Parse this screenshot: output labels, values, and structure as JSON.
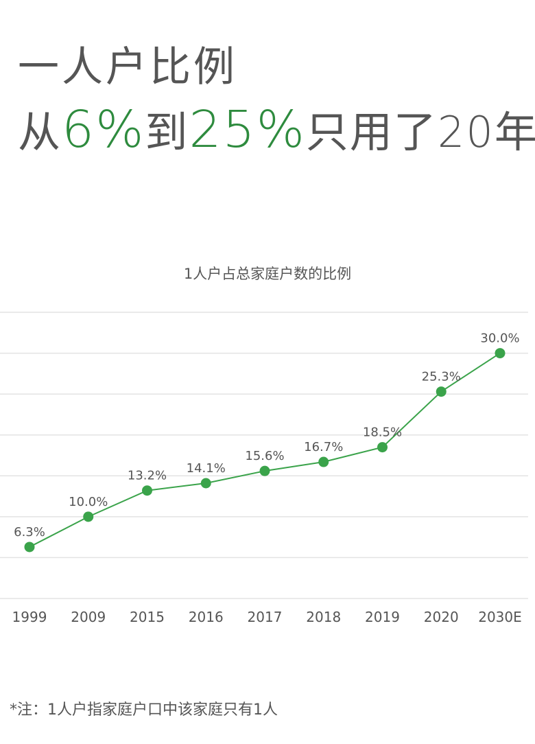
{
  "headline": {
    "line1": "一人户比例",
    "line2_prefix": "从",
    "line2_num1": "6%",
    "line2_mid": "到",
    "line2_num2": "25%",
    "line2_suffix": "只用了20年"
  },
  "footnote": "*注：1人户指家庭户口中该家庭只有1人",
  "colors": {
    "accent": "#2e8b3e",
    "line": "#3aa34a",
    "gridline": "#e3e3e3",
    "text": "#555555"
  },
  "chart_data": {
    "type": "line",
    "title": "1人户占总家庭户数的比例",
    "xlabel": "",
    "ylabel": "",
    "categories": [
      "1999",
      "2009",
      "2015",
      "2016",
      "2017",
      "2018",
      "2019",
      "2020",
      "2030E"
    ],
    "series": [
      {
        "values": [
          6.3,
          10.0,
          13.2,
          14.1,
          15.6,
          16.7,
          18.5,
          25.3,
          30.0
        ],
        "labels": [
          "6.3%",
          "10.0%",
          "13.2%",
          "14.1%",
          "15.6%",
          "16.7%",
          "18.5%",
          "25.3%",
          "30.0%"
        ]
      }
    ],
    "ylim": [
      0,
      35
    ],
    "grid": true,
    "y_tick_labels_shown": false,
    "legend": "none"
  }
}
